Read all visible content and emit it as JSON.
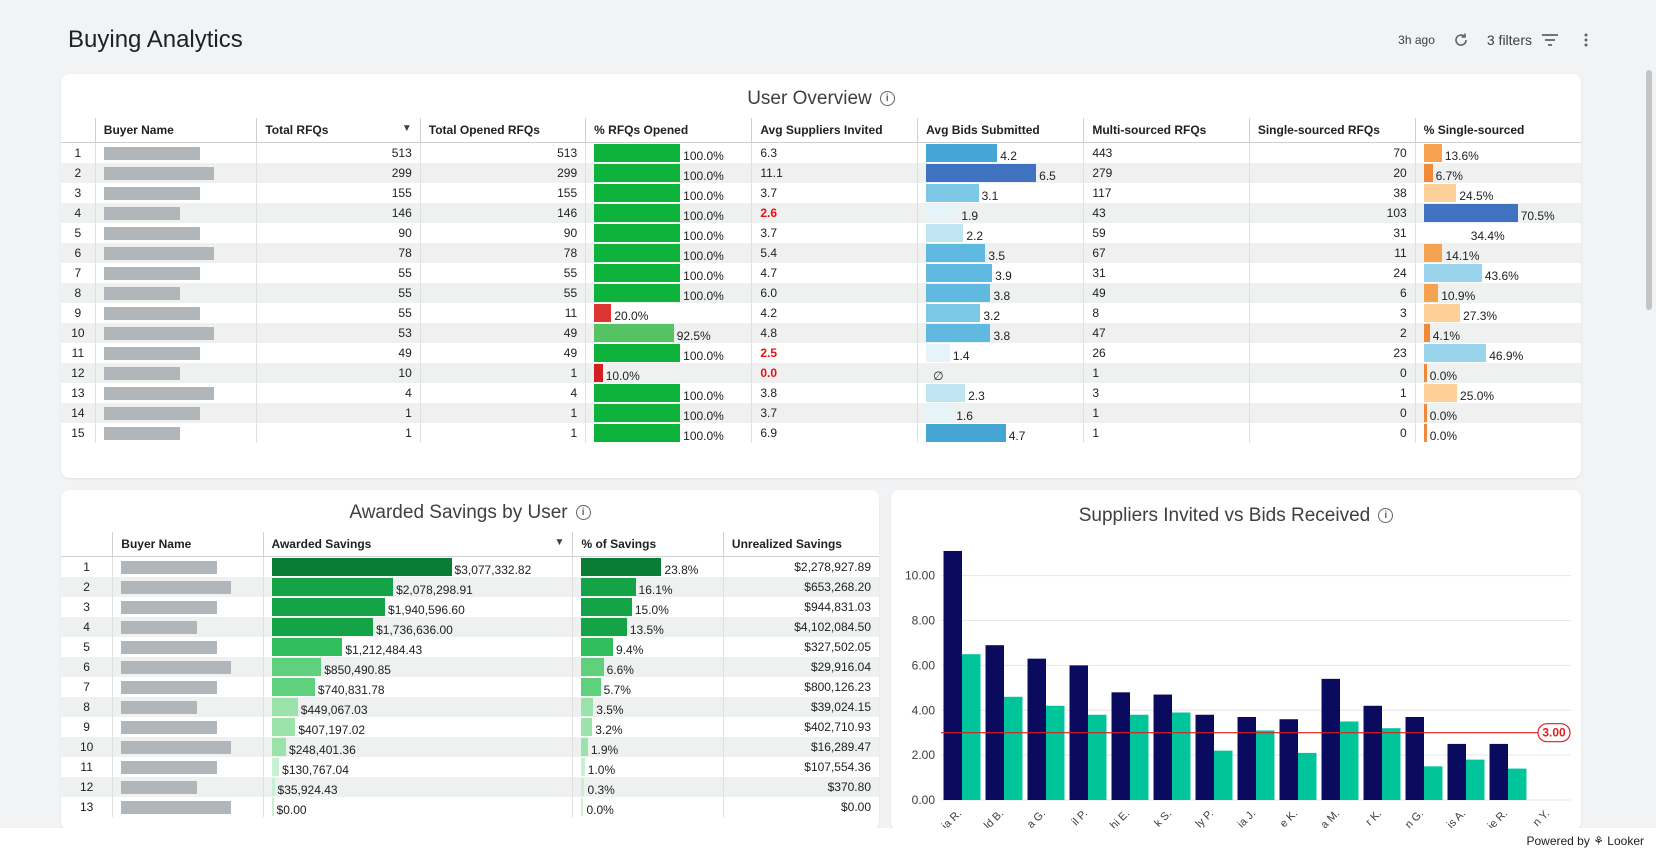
{
  "header": {
    "title": "Buying Analytics",
    "updated": "3h ago",
    "filters_label": "3 filters"
  },
  "footer": {
    "powered": "Powered by",
    "brand": "Looker"
  },
  "user_overview": {
    "title": "User Overview",
    "columns": [
      "Buyer Name",
      "Total RFQs",
      "Total Opened RFQs",
      "% RFQs Opened",
      "Avg Suppliers Invited",
      "Avg Bids Submitted",
      "Multi-sourced RFQs",
      "Single-sourced RFQs",
      "% Single-sourced"
    ],
    "rows": [
      {
        "n": "1",
        "total": "513",
        "opened": "513",
        "pct": "100.0%",
        "pctv": 100,
        "sup": "6.3",
        "sup_red": false,
        "bids": "4.2",
        "bidsv": 4.2,
        "multi": "443",
        "single": "70",
        "pss": "13.6%",
        "pssv": 13.6
      },
      {
        "n": "2",
        "total": "299",
        "opened": "299",
        "pct": "100.0%",
        "pctv": 100,
        "sup": "11.1",
        "sup_red": false,
        "bids": "6.5",
        "bidsv": 6.5,
        "multi": "279",
        "single": "20",
        "pss": "6.7%",
        "pssv": 6.7
      },
      {
        "n": "3",
        "total": "155",
        "opened": "155",
        "pct": "100.0%",
        "pctv": 100,
        "sup": "3.7",
        "sup_red": false,
        "bids": "3.1",
        "bidsv": 3.1,
        "multi": "117",
        "single": "38",
        "pss": "24.5%",
        "pssv": 24.5
      },
      {
        "n": "4",
        "total": "146",
        "opened": "146",
        "pct": "100.0%",
        "pctv": 100,
        "sup": "2.6",
        "sup_red": true,
        "bids": "1.9",
        "bidsv": 1.9,
        "multi": "43",
        "single": "103",
        "pss": "70.5%",
        "pssv": 70.5
      },
      {
        "n": "5",
        "total": "90",
        "opened": "90",
        "pct": "100.0%",
        "pctv": 100,
        "sup": "3.7",
        "sup_red": false,
        "bids": "2.2",
        "bidsv": 2.2,
        "multi": "59",
        "single": "31",
        "pss": "34.4%",
        "pssv": 34.4
      },
      {
        "n": "6",
        "total": "78",
        "opened": "78",
        "pct": "100.0%",
        "pctv": 100,
        "sup": "5.4",
        "sup_red": false,
        "bids": "3.5",
        "bidsv": 3.5,
        "multi": "67",
        "single": "11",
        "pss": "14.1%",
        "pssv": 14.1
      },
      {
        "n": "7",
        "total": "55",
        "opened": "55",
        "pct": "100.0%",
        "pctv": 100,
        "sup": "4.7",
        "sup_red": false,
        "bids": "3.9",
        "bidsv": 3.9,
        "multi": "31",
        "single": "24",
        "pss": "43.6%",
        "pssv": 43.6
      },
      {
        "n": "8",
        "total": "55",
        "opened": "55",
        "pct": "100.0%",
        "pctv": 100,
        "sup": "6.0",
        "sup_red": false,
        "bids": "3.8",
        "bidsv": 3.8,
        "multi": "49",
        "single": "6",
        "pss": "10.9%",
        "pssv": 10.9
      },
      {
        "n": "9",
        "total": "55",
        "opened": "11",
        "pct": "20.0%",
        "pctv": 20,
        "sup": "4.2",
        "sup_red": false,
        "bids": "3.2",
        "bidsv": 3.2,
        "multi": "8",
        "single": "3",
        "pss": "27.3%",
        "pssv": 27.3
      },
      {
        "n": "10",
        "total": "53",
        "opened": "49",
        "pct": "92.5%",
        "pctv": 92.5,
        "sup": "4.8",
        "sup_red": false,
        "bids": "3.8",
        "bidsv": 3.8,
        "multi": "47",
        "single": "2",
        "pss": "4.1%",
        "pssv": 4.1
      },
      {
        "n": "11",
        "total": "49",
        "opened": "49",
        "pct": "100.0%",
        "pctv": 100,
        "sup": "2.5",
        "sup_red": true,
        "bids": "1.4",
        "bidsv": 1.4,
        "multi": "26",
        "single": "23",
        "pss": "46.9%",
        "pssv": 46.9
      },
      {
        "n": "12",
        "total": "10",
        "opened": "1",
        "pct": "10.0%",
        "pctv": 10,
        "sup": "0.0",
        "sup_red": true,
        "bids": "∅",
        "bidsv": 0,
        "multi": "1",
        "single": "0",
        "pss": "0.0%",
        "pssv": 0
      },
      {
        "n": "13",
        "total": "4",
        "opened": "4",
        "pct": "100.0%",
        "pctv": 100,
        "sup": "3.8",
        "sup_red": false,
        "bids": "2.3",
        "bidsv": 2.3,
        "multi": "3",
        "single": "1",
        "pss": "25.0%",
        "pssv": 25.0
      },
      {
        "n": "14",
        "total": "1",
        "opened": "1",
        "pct": "100.0%",
        "pctv": 100,
        "sup": "3.7",
        "sup_red": false,
        "bids": "1.6",
        "bidsv": 1.6,
        "multi": "1",
        "single": "0",
        "pss": "0.0%",
        "pssv": 0
      },
      {
        "n": "15",
        "total": "1",
        "opened": "1",
        "pct": "100.0%",
        "pctv": 100,
        "sup": "6.9",
        "sup_red": false,
        "bids": "4.7",
        "bidsv": 4.7,
        "multi": "1",
        "single": "0",
        "pss": "0.0%",
        "pssv": 0
      }
    ]
  },
  "awarded_savings": {
    "title": "Awarded Savings by User",
    "columns": [
      "Buyer Name",
      "Awarded Savings",
      "% of Savings",
      "Unrealized Savings"
    ],
    "rows": [
      {
        "n": "1",
        "saved": "$3,077,332.82",
        "savedv": 3077332.82,
        "pct": "23.8%",
        "pctv": 23.8,
        "unreal": "$2,278,927.89"
      },
      {
        "n": "2",
        "saved": "$2,078,298.91",
        "savedv": 2078298.91,
        "pct": "16.1%",
        "pctv": 16.1,
        "unreal": "$653,268.20"
      },
      {
        "n": "3",
        "saved": "$1,940,596.60",
        "savedv": 1940596.6,
        "pct": "15.0%",
        "pctv": 15.0,
        "unreal": "$944,831.03"
      },
      {
        "n": "4",
        "saved": "$1,736,636.00",
        "savedv": 1736636.0,
        "pct": "13.5%",
        "pctv": 13.5,
        "unreal": "$4,102,084.50"
      },
      {
        "n": "5",
        "saved": "$1,212,484.43",
        "savedv": 1212484.43,
        "pct": "9.4%",
        "pctv": 9.4,
        "unreal": "$327,502.05"
      },
      {
        "n": "6",
        "saved": "$850,490.85",
        "savedv": 850490.85,
        "pct": "6.6%",
        "pctv": 6.6,
        "unreal": "$29,916.04"
      },
      {
        "n": "7",
        "saved": "$740,831.78",
        "savedv": 740831.78,
        "pct": "5.7%",
        "pctv": 5.7,
        "unreal": "$800,126.23"
      },
      {
        "n": "8",
        "saved": "$449,067.03",
        "savedv": 449067.03,
        "pct": "3.5%",
        "pctv": 3.5,
        "unreal": "$39,024.15"
      },
      {
        "n": "9",
        "saved": "$407,197.02",
        "savedv": 407197.02,
        "pct": "3.2%",
        "pctv": 3.2,
        "unreal": "$402,710.93"
      },
      {
        "n": "10",
        "saved": "$248,401.36",
        "savedv": 248401.36,
        "pct": "1.9%",
        "pctv": 1.9,
        "unreal": "$16,289.47"
      },
      {
        "n": "11",
        "saved": "$130,767.04",
        "savedv": 130767.04,
        "pct": "1.0%",
        "pctv": 1.0,
        "unreal": "$107,554.36"
      },
      {
        "n": "12",
        "saved": "$35,924.43",
        "savedv": 35924.43,
        "pct": "0.3%",
        "pctv": 0.3,
        "unreal": "$370.80"
      },
      {
        "n": "13",
        "saved": "$0.00",
        "savedv": 0,
        "pct": "0.0%",
        "pctv": 0,
        "unreal": "$0.00"
      }
    ]
  },
  "suppliers_chart": {
    "title": "Suppliers Invited vs Bids Received"
  },
  "chart_data": {
    "type": "bar",
    "title": "Suppliers Invited vs Bids Received",
    "categories": [
      "ia R.",
      "ld B.",
      "a G.",
      "il P.",
      "hi E.",
      "k S.",
      "ly P.",
      "ia J.",
      "e K.",
      "a M.",
      "r K.",
      "n G.",
      "is A.",
      "ie R.",
      "n Y."
    ],
    "series": [
      {
        "values": [
          11.1,
          6.9,
          6.3,
          6.0,
          4.8,
          4.7,
          3.8,
          3.7,
          3.6,
          5.4,
          4.2,
          3.7,
          2.5,
          2.5,
          0
        ]
      },
      {
        "values": [
          6.5,
          4.6,
          4.2,
          3.8,
          3.8,
          3.9,
          2.2,
          3.1,
          2.1,
          3.5,
          3.2,
          1.5,
          1.8,
          1.4,
          0
        ]
      }
    ],
    "colors": [
      "#0a0a5e",
      "#00c49a"
    ],
    "yticks": [
      "0.00",
      "2.00",
      "4.00",
      "6.00",
      "8.00",
      "10.00"
    ],
    "ylim": [
      0,
      11.5
    ],
    "reference_line": {
      "value": 3.0,
      "label": "3.00",
      "color": "#e02020"
    }
  }
}
